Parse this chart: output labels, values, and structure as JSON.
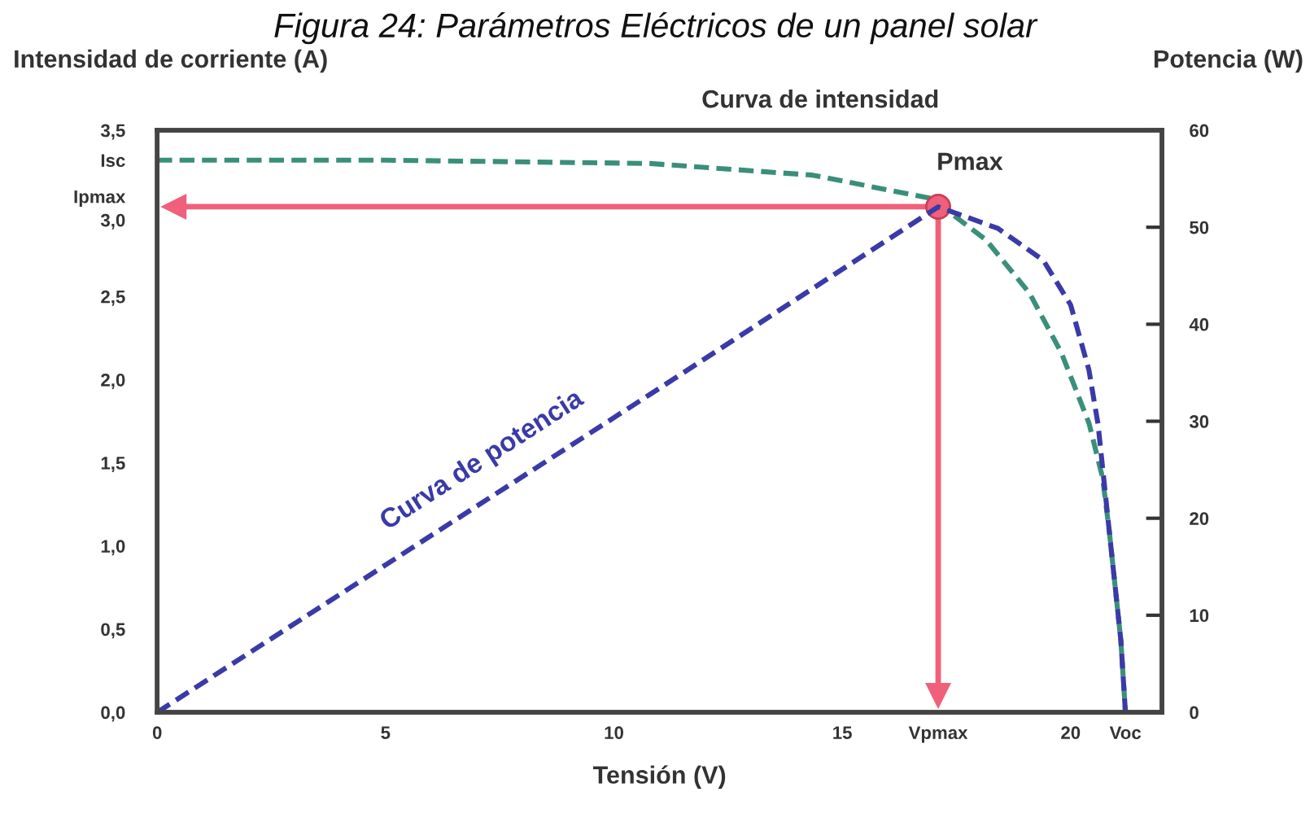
{
  "chart_data": {
    "type": "line",
    "title": "Figura 24: Parámetros Eléctricos de un panel solar",
    "ylabel": "Intensidad de corriente (A)",
    "y2label": "Potencia (W)",
    "xlabel": "Tensión (V)",
    "xlim": [
      0,
      22
    ],
    "xticks": [
      0,
      5,
      10,
      15,
      {
        "value": 17.1,
        "label": "Vpmax"
      },
      20,
      {
        "value": 21.2,
        "label": "Voc"
      }
    ],
    "ylim": [
      0,
      3.5
    ],
    "yticks": [
      {
        "value": 0,
        "label": "0,0"
      },
      {
        "value": 0.5,
        "label": "0,5"
      },
      {
        "value": 1,
        "label": "1,0"
      },
      {
        "value": 1.5,
        "label": "1,5"
      },
      {
        "value": 2,
        "label": "2,0"
      },
      {
        "value": 2.5,
        "label": "2,5"
      },
      {
        "value": 3,
        "label": "3,0"
      },
      {
        "value": 3.04,
        "label": "Ipmax"
      },
      {
        "value": 3.32,
        "label": "Isc"
      },
      {
        "value": 3.5,
        "label": "3,5"
      }
    ],
    "y2lim": [
      0,
      60
    ],
    "y2ticks": [
      0,
      10,
      20,
      30,
      40,
      50,
      60
    ],
    "series": [
      {
        "name": "Curva de intensidad",
        "line_style": "dashed",
        "color": "#3a8f7a",
        "x": [
          0,
          5,
          10.8,
          14.35,
          16.95,
          18.15,
          19.1,
          19.8,
          20.4,
          20.7,
          20.85,
          21.1,
          21.2
        ],
        "values": [
          3.32,
          3.32,
          3.3,
          3.23,
          3.09,
          2.84,
          2.52,
          2.16,
          1.74,
          1.41,
          1.08,
          0.43,
          0
        ]
      },
      {
        "name": "Curva de potencia",
        "axis": "y2",
        "line_style": "dashed",
        "color": "#3a3aa8",
        "x": [
          0,
          10.8,
          17.1,
          18.4,
          19.4,
          20.0,
          20.4,
          20.6,
          20.85,
          21.1,
          21.2
        ],
        "values": [
          0,
          32.8,
          52.1,
          49.9,
          46.6,
          42.0,
          35.3,
          29.7,
          18.5,
          7.4,
          0
        ]
      },
      {
        "name": "Pmax",
        "type": "scatter",
        "marker": "circle",
        "color": "#f0607a",
        "x": [
          17.1
        ],
        "values": [
          3.04
        ]
      }
    ]
  }
}
